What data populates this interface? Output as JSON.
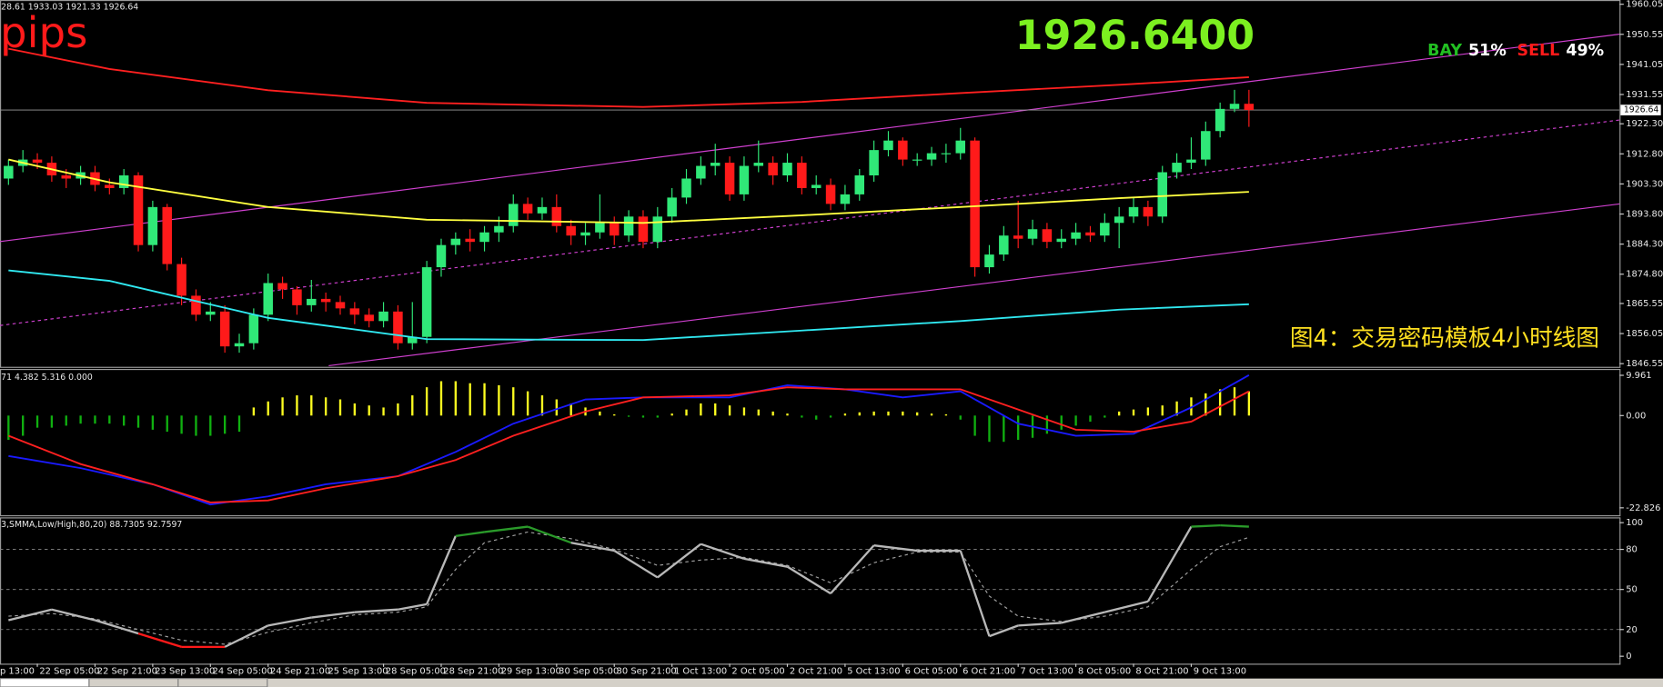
{
  "chart_data": [
    {
      "type": "candlestick",
      "header": "28.61 1933.03 1921.33 1926.64",
      "pips_label": "pips",
      "price_display": "1926.6400",
      "sentiment": [
        {
          "name": "BAY",
          "share": "51%",
          "color": "#22c022"
        },
        {
          "name": "SELL",
          "share": "49%",
          "color": "#ff1a1a"
        }
      ],
      "caption": "图4：交易密码模板4小时线图",
      "up_color": "#30e878",
      "down_color": "#ff1a1a",
      "ohlc": [
        [
          1905,
          1911,
          1903,
          1909
        ],
        [
          1909,
          1914,
          1907,
          1911
        ],
        [
          1911,
          1913,
          1908,
          1910
        ],
        [
          1910,
          1912,
          1904,
          1906
        ],
        [
          1906,
          1908,
          1902,
          1905
        ],
        [
          1905,
          1909,
          1903,
          1907
        ],
        [
          1907,
          1909,
          1901,
          1903
        ],
        [
          1903,
          1905,
          1900,
          1902
        ],
        [
          1902,
          1908,
          1900,
          1906
        ],
        [
          1906,
          1907,
          1882,
          1884
        ],
        [
          1884,
          1898,
          1882,
          1896
        ],
        [
          1896,
          1897,
          1876,
          1878
        ],
        [
          1878,
          1880,
          1865,
          1868
        ],
        [
          1868,
          1870,
          1860,
          1862
        ],
        [
          1862,
          1866,
          1860,
          1863
        ],
        [
          1863,
          1865,
          1850,
          1852
        ],
        [
          1852,
          1856,
          1850,
          1853
        ],
        [
          1853,
          1864,
          1851,
          1862
        ],
        [
          1862,
          1875,
          1860,
          1872
        ],
        [
          1872,
          1874,
          1867,
          1870
        ],
        [
          1870,
          1871,
          1862,
          1865
        ],
        [
          1865,
          1873,
          1863,
          1867
        ],
        [
          1867,
          1869,
          1863,
          1866
        ],
        [
          1866,
          1868,
          1862,
          1864
        ],
        [
          1864,
          1866,
          1859,
          1862
        ],
        [
          1862,
          1864,
          1858,
          1860
        ],
        [
          1860,
          1866,
          1858,
          1863
        ],
        [
          1863,
          1865,
          1851,
          1853
        ],
        [
          1853,
          1866,
          1851,
          1855
        ],
        [
          1855,
          1879,
          1853,
          1877
        ],
        [
          1877,
          1886,
          1874,
          1884
        ],
        [
          1884,
          1888,
          1881,
          1886
        ],
        [
          1886,
          1889,
          1882,
          1885
        ],
        [
          1885,
          1890,
          1882,
          1888
        ],
        [
          1888,
          1893,
          1885,
          1890
        ],
        [
          1890,
          1900,
          1888,
          1897
        ],
        [
          1897,
          1899,
          1892,
          1894
        ],
        [
          1894,
          1899,
          1892,
          1896
        ],
        [
          1896,
          1900,
          1888,
          1890
        ],
        [
          1890,
          1892,
          1884,
          1887
        ],
        [
          1887,
          1891,
          1884,
          1888
        ],
        [
          1888,
          1900,
          1886,
          1891
        ],
        [
          1891,
          1893,
          1884,
          1887
        ],
        [
          1887,
          1895,
          1885,
          1893
        ],
        [
          1893,
          1895,
          1883,
          1885
        ],
        [
          1885,
          1896,
          1883,
          1893
        ],
        [
          1893,
          1902,
          1891,
          1899
        ],
        [
          1899,
          1908,
          1897,
          1905
        ],
        [
          1905,
          1912,
          1903,
          1909
        ],
        [
          1909,
          1916,
          1906,
          1910
        ],
        [
          1910,
          1912,
          1898,
          1900
        ],
        [
          1900,
          1912,
          1898,
          1909
        ],
        [
          1909,
          1917,
          1907,
          1910
        ],
        [
          1910,
          1912,
          1903,
          1906
        ],
        [
          1906,
          1913,
          1904,
          1910
        ],
        [
          1910,
          1912,
          1900,
          1902
        ],
        [
          1902,
          1906,
          1900,
          1903
        ],
        [
          1903,
          1905,
          1895,
          1897
        ],
        [
          1897,
          1903,
          1895,
          1900
        ],
        [
          1900,
          1908,
          1898,
          1906
        ],
        [
          1906,
          1917,
          1904,
          1914
        ],
        [
          1914,
          1920,
          1912,
          1917
        ],
        [
          1917,
          1918,
          1909,
          1911
        ],
        [
          1911,
          1913,
          1909,
          1911
        ],
        [
          1911,
          1915,
          1909,
          1913
        ],
        [
          1913,
          1916,
          1910,
          1913
        ],
        [
          1913,
          1921,
          1911,
          1917
        ],
        [
          1917,
          1918,
          1874,
          1877
        ],
        [
          1877,
          1884,
          1875,
          1881
        ],
        [
          1881,
          1890,
          1879,
          1887
        ],
        [
          1887,
          1898,
          1883,
          1886
        ],
        [
          1886,
          1892,
          1884,
          1889
        ],
        [
          1889,
          1891,
          1883,
          1885
        ],
        [
          1885,
          1889,
          1883,
          1886
        ],
        [
          1886,
          1891,
          1884,
          1888
        ],
        [
          1888,
          1890,
          1885,
          1887
        ],
        [
          1887,
          1894,
          1885,
          1891
        ],
        [
          1891,
          1896,
          1883,
          1893
        ],
        [
          1893,
          1899,
          1891,
          1896
        ],
        [
          1896,
          1898,
          1890,
          1893
        ],
        [
          1893,
          1909,
          1891,
          1907
        ],
        [
          1907,
          1913,
          1905,
          1910
        ],
        [
          1910,
          1918,
          1908,
          1911
        ],
        [
          1911,
          1923,
          1909,
          1920
        ],
        [
          1920,
          1929,
          1918,
          1927
        ],
        [
          1927,
          1933,
          1926,
          1928.61
        ],
        [
          1928.61,
          1933.03,
          1921.33,
          1926.64
        ]
      ],
      "lines": [
        {
          "color": "#ff2020",
          "x": [
            0,
            7,
            18,
            29,
            44,
            55,
            66,
            77,
            86
          ],
          "values": [
            1946,
            1939.6,
            1932.9,
            1928.9,
            1927.6,
            1929.2,
            1932,
            1934.6,
            1937
          ]
        },
        {
          "color": "#ffff40",
          "x": [
            0,
            7,
            18,
            29,
            44,
            55,
            66,
            77,
            86
          ],
          "values": [
            1911,
            1903.8,
            1896,
            1892,
            1891,
            1893.4,
            1896,
            1898.8,
            1900.8
          ]
        },
        {
          "color": "#30e8f0",
          "x": [
            0,
            7,
            18,
            29,
            44,
            55,
            66,
            77,
            86
          ],
          "values": [
            1876,
            1872.7,
            1861,
            1854.3,
            1854,
            1857,
            1860,
            1863.6,
            1865.3
          ]
        }
      ],
      "channels": [
        {
          "color": "#d040d0",
          "dashed": false,
          "x": [
            -0.59,
            111.7
          ],
          "values": [
            1885.1,
            1950.6
          ]
        },
        {
          "color": "#d040d0",
          "dashed": true,
          "x": [
            -0.59,
            111.7
          ],
          "values": [
            1858.6,
            1923.5
          ]
        },
        {
          "color": "#d040d0",
          "dashed": false,
          "x": [
            22.2,
            111.7
          ],
          "values": [
            1845.9,
            1897.0
          ]
        }
      ],
      "price_tag": 1926.64,
      "ylim": [
        1846.55,
        1960.05
      ],
      "yticks": [
        1960.05,
        1950.55,
        1941.05,
        1931.55,
        {
          "value": 1922.3,
          "label": "1922.30"
        },
        {
          "value": 1912.8,
          "label": "1912.80"
        },
        {
          "value": 1903.3,
          "label": "1903.30"
        },
        {
          "value": 1893.8,
          "label": "1893.80"
        },
        {
          "value": 1884.3,
          "label": "1884.30"
        },
        {
          "value": 1874.8,
          "label": "1874.80"
        },
        1865.55,
        1856.05,
        1846.55
      ],
      "grid": false
    },
    {
      "type": "macd",
      "header": "71 4.382 5.316 0.000",
      "up_color": "#ffff20",
      "down_color": "#10b010",
      "histogram": [
        -6,
        -5,
        -3,
        -3,
        -2.5,
        -2,
        -2,
        -2,
        -2.5,
        -3,
        -3.5,
        -4,
        -4.5,
        -5,
        -5,
        -4.5,
        -4,
        2,
        3.5,
        4.5,
        5,
        5,
        4.5,
        4,
        3,
        2.5,
        2,
        3,
        5,
        7,
        8.5,
        8.5,
        8,
        8,
        7.5,
        7,
        6,
        5,
        4,
        3,
        2,
        1,
        0.3,
        -0.3,
        -0.5,
        -0.5,
        0.5,
        1.5,
        3,
        3,
        2.5,
        2,
        1.5,
        1,
        0.5,
        -0.5,
        -1,
        -0.5,
        0.5,
        0.8,
        1,
        1,
        1,
        0.8,
        0.5,
        0.3,
        -1,
        -5,
        -6.5,
        -6.5,
        -6,
        -5.5,
        -4.5,
        -3.5,
        -2.5,
        -1.5,
        -0.5,
        1,
        1.5,
        2,
        2.5,
        3.5,
        4.5,
        5.5,
        6.5,
        7,
        6
      ],
      "lines": [
        {
          "color": "#1a1aff",
          "x": [
            0,
            5,
            10,
            14,
            18,
            22,
            27,
            31,
            35,
            40,
            44,
            50,
            54,
            58,
            62,
            66,
            70,
            74,
            78,
            82,
            86
          ],
          "values": [
            -10,
            -13,
            -17,
            -22,
            -20,
            -17,
            -15,
            -9,
            -2,
            4,
            4.5,
            4.5,
            7.5,
            6.5,
            4.5,
            6,
            -2,
            -5,
            -4.5,
            2,
            10
          ]
        },
        {
          "color": "#ff2020",
          "x": [
            0,
            5,
            10,
            14,
            18,
            22,
            27,
            31,
            35,
            40,
            44,
            50,
            54,
            58,
            62,
            66,
            70,
            74,
            78,
            82,
            86
          ],
          "values": [
            -5,
            -12,
            -17,
            -21.5,
            -21,
            -18,
            -15,
            -11,
            -5,
            1,
            4.5,
            5,
            7,
            6.5,
            6.5,
            6.5,
            1.5,
            -3.5,
            -4,
            -1.5,
            6
          ]
        }
      ],
      "ylim": [
        -22.826,
        9.961
      ],
      "yticks": [
        9.961,
        {
          "value": 0,
          "label": "0.00"
        },
        -22.826
      ],
      "grid": false
    },
    {
      "type": "stochastic",
      "header": "3,SMMA,Low/High,80,20) 88.7305 92.7597",
      "colors": {
        "main": "#b8b8b8",
        "upper": "#2a9a2a",
        "lower": "#ff1a1a",
        "signal": "#a0a0a0"
      },
      "x": [
        0,
        3,
        6,
        9,
        12,
        15,
        18,
        21,
        24,
        27,
        29,
        31,
        33,
        36,
        39,
        42,
        45,
        48,
        51,
        54,
        57,
        60,
        63,
        66,
        68,
        70,
        73,
        76,
        79,
        82,
        84,
        86
      ],
      "main": [
        27,
        35,
        27,
        17,
        7,
        7,
        23,
        29,
        33,
        35,
        39,
        90,
        93,
        97,
        85,
        79,
        59,
        84,
        73,
        67,
        47,
        83,
        79,
        79,
        15,
        23,
        25,
        33,
        41,
        97,
        98,
        97
      ],
      "signal": [
        30,
        32,
        28,
        20,
        12,
        9,
        18,
        25,
        31,
        33,
        37,
        65,
        85,
        93,
        88,
        80,
        68,
        72,
        74,
        68,
        55,
        70,
        78,
        78,
        45,
        30,
        26,
        30,
        37,
        65,
        82,
        89
      ],
      "ylim": [
        0,
        100
      ],
      "yticks": [
        100,
        80,
        50,
        20,
        0
      ],
      "grid": true,
      "xticks": [
        {
          "value": -2,
          "label": "p 13:00"
        },
        {
          "value": 2,
          "label": "22 Sep 05:00"
        },
        {
          "value": 6,
          "label": "22 Sep 21:00"
        },
        {
          "value": 10,
          "label": "23 Sep 13:00"
        },
        {
          "value": 14,
          "label": "24 Sep 05:00"
        },
        {
          "value": 18,
          "label": "24 Sep 21:00"
        },
        {
          "value": 22,
          "label": "25 Sep 13:00"
        },
        {
          "value": 26,
          "label": "28 Sep 05:00"
        },
        {
          "value": 30,
          "label": "28 Sep 21:00"
        },
        {
          "value": 34,
          "label": "29 Sep 13:00"
        },
        {
          "value": 38,
          "label": "30 Sep 05:00"
        },
        {
          "value": 42,
          "label": "30 Sep 21:00"
        },
        {
          "value": 46,
          "label": "1 Oct 13:00"
        },
        {
          "value": 50,
          "label": "2 Oct 05:00"
        },
        {
          "value": 54,
          "label": "2 Oct 21:00"
        },
        {
          "value": 58,
          "label": "5 Oct 13:00"
        },
        {
          "value": 62,
          "label": "6 Oct 05:00"
        },
        {
          "value": 66,
          "label": "6 Oct 21:00"
        },
        {
          "value": 70,
          "label": "7 Oct 13:00"
        },
        {
          "value": 74,
          "label": "8 Oct 05:00"
        },
        {
          "value": 78,
          "label": "8 Oct 21:00"
        },
        {
          "value": 82,
          "label": "9 Oct 13:00"
        }
      ]
    }
  ]
}
